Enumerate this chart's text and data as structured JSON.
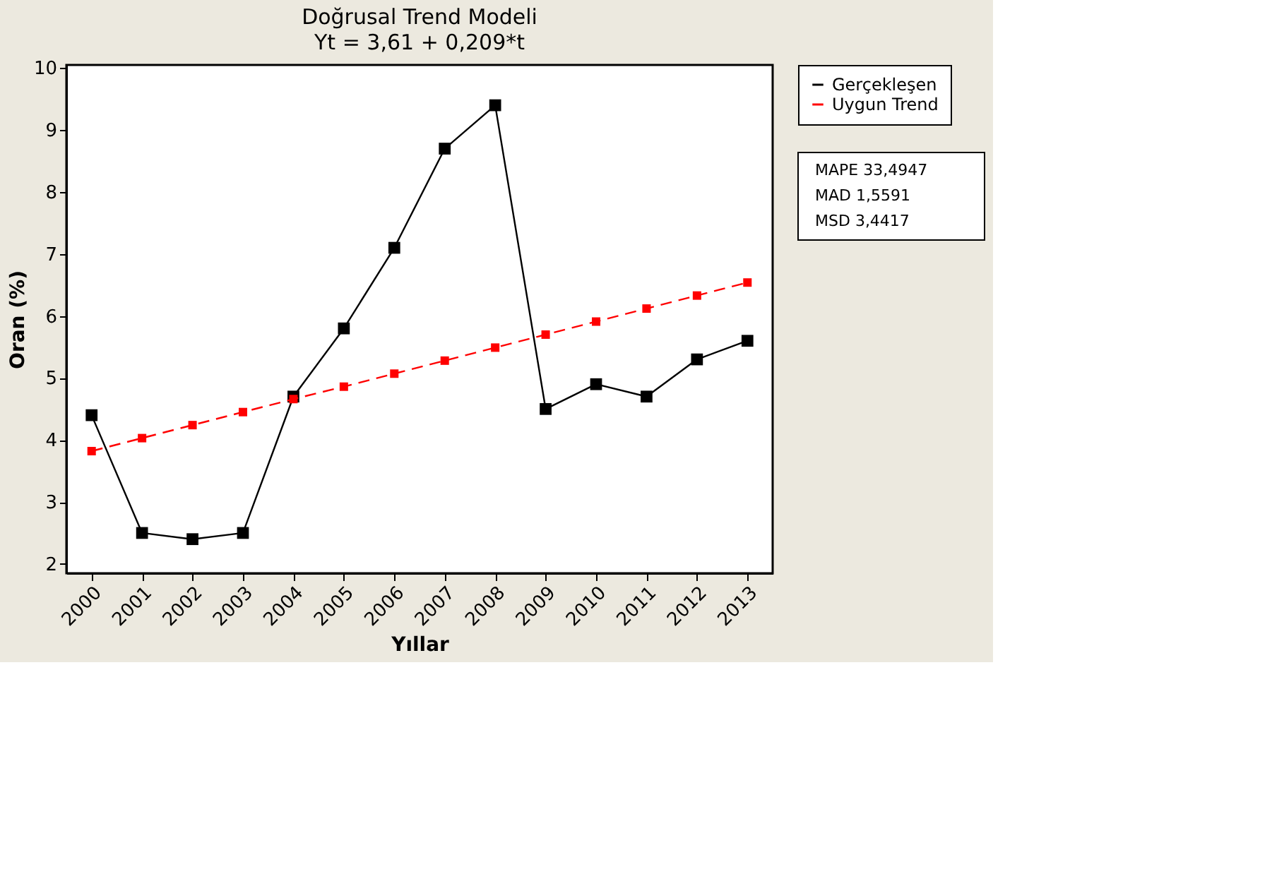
{
  "chart_data": {
    "type": "line",
    "title": "Doğrusal Trend Modeli",
    "subtitle": "Yt = 3,61 + 0,209*t",
    "xlabel": "Yıllar",
    "ylabel": "Oran (%)",
    "categories": [
      "2000",
      "2001",
      "2002",
      "2003",
      "2004",
      "2005",
      "2006",
      "2007",
      "2008",
      "2009",
      "2010",
      "2011",
      "2012",
      "2013"
    ],
    "series": [
      {
        "name": "Gerçekleşen",
        "color": "#000000",
        "line_style": "solid",
        "values": [
          4.4,
          2.5,
          2.4,
          2.5,
          4.7,
          5.8,
          7.1,
          8.7,
          9.4,
          4.5,
          4.9,
          4.7,
          5.3,
          5.6
        ]
      },
      {
        "name": "Uygun Trend",
        "color": "#ff0000",
        "line_style": "dashed",
        "values": [
          3.82,
          4.03,
          4.24,
          4.45,
          4.66,
          4.86,
          5.07,
          5.28,
          5.49,
          5.7,
          5.91,
          6.12,
          6.33,
          6.54
        ]
      }
    ],
    "ylim": [
      1.85,
      10.05
    ],
    "yticks": [
      2,
      3,
      4,
      5,
      6,
      7,
      8,
      9,
      10
    ],
    "grid": false,
    "legend": "top right",
    "marker": "square",
    "annotations": [
      "MAPE 33,4947",
      "MAD 1,5591",
      "MSD 3,4417"
    ]
  }
}
